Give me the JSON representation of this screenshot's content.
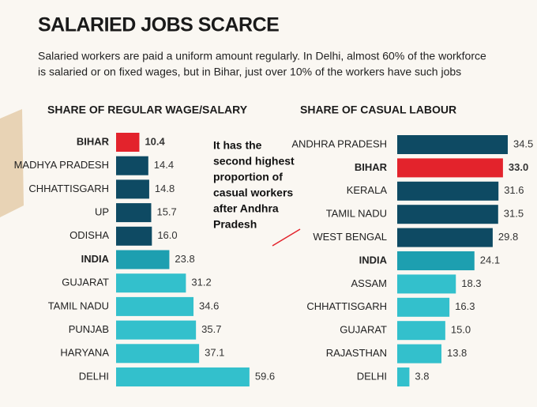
{
  "title": "SALARIED JOBS SCARCE",
  "subtitle": [
    "Salaried workers are paid a uniform amount regularly. In Delhi, almost 60% of the workforce",
    "is salaried or on fixed wages, but in Bihar, just over 10% of the workers have such jobs"
  ],
  "chart_data": [
    {
      "type": "hbar",
      "title": "SHARE OF REGULAR WAGE/SALARY",
      "categories": [
        "BIHAR",
        "MADHYA PRADESH",
        "CHHATTISGARH",
        "UP",
        "ODISHA",
        "INDIA",
        "GUJARAT",
        "TAMIL NADU",
        "PUNJAB",
        "HARYANA",
        "DELHI"
      ],
      "values": [
        10.4,
        14.4,
        14.8,
        15.7,
        16.0,
        23.8,
        31.2,
        34.6,
        35.7,
        37.1,
        59.6
      ],
      "value_labels": [
        "10.4",
        "14.4",
        "14.8",
        "15.7",
        "16.0",
        "23.8",
        "31.2",
        "34.6",
        "35.7",
        "37.1",
        "59.6"
      ],
      "colors": [
        "#e3232c",
        "#0e4a63",
        "#0e4a63",
        "#0e4a63",
        "#0e4a63",
        "#1d9fb0",
        "#33c0cc",
        "#33c0cc",
        "#33c0cc",
        "#33c0cc",
        "#33c0cc"
      ],
      "xlim": [
        0,
        60
      ]
    },
    {
      "type": "hbar",
      "title": "SHARE OF CASUAL LABOUR",
      "categories": [
        "ANDHRA PRADESH",
        "BIHAR",
        "KERALA",
        "TAMIL NADU",
        "WEST BENGAL",
        "INDIA",
        "ASSAM",
        "CHHATTISGARH",
        "GUJARAT",
        "RAJASTHAN",
        "DELHI"
      ],
      "values": [
        34.5,
        33.0,
        31.6,
        31.5,
        29.8,
        24.1,
        18.3,
        16.3,
        15.0,
        13.8,
        3.8
      ],
      "value_labels": [
        "34.5",
        "33.0",
        "31.6",
        "31.5",
        "29.8",
        "24.1",
        "18.3",
        "16.3",
        "15.0",
        "13.8",
        "3.8"
      ],
      "colors": [
        "#0e4a63",
        "#e3232c",
        "#0e4a63",
        "#0e4a63",
        "#0e4a63",
        "#1d9fb0",
        "#33c0cc",
        "#33c0cc",
        "#33c0cc",
        "#33c0cc",
        "#33c0cc"
      ],
      "xlim": [
        0,
        35
      ],
      "annotation": [
        "It has the",
        "second highest",
        "proportion of",
        "casual workers",
        "after Andhra",
        "Pradesh"
      ]
    }
  ]
}
